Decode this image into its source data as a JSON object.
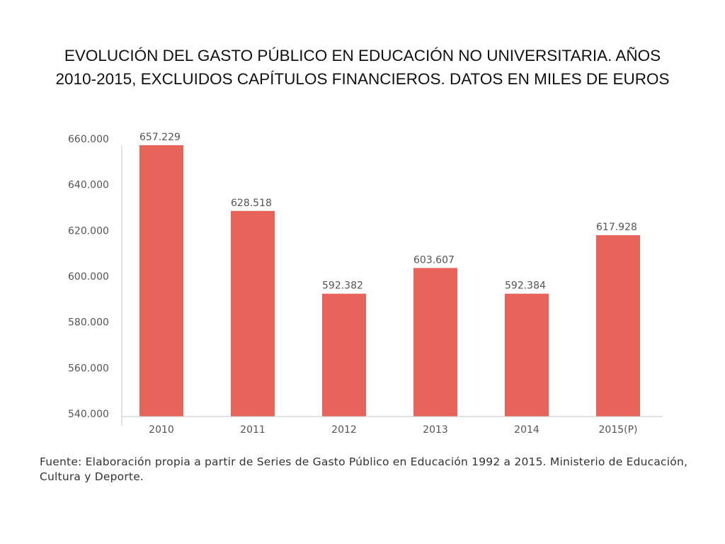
{
  "title": {
    "line1": "EVOLUCIÓN DEL GASTO PÚBLICO EN EDUCACIÓN NO UNIVERSITARIA. AÑOS",
    "line2": "2010-2015, EXCLUIDOS CAPÍTULOS FINANCIEROS. DATOS EN MILES DE EUROS"
  },
  "source": "Fuente: Elaboración propia a partir de Series de Gasto Público en Educación 1992 a 2015. Ministerio de Educación, Cultura y Deporte.",
  "colors": {
    "bar": "#e8635a",
    "axis_text": "#555555",
    "axis_line": "#c8c8c8"
  },
  "chart_data": {
    "type": "bar",
    "title": "EVOLUCIÓN DEL GASTO PÚBLICO EN EDUCACIÓN NO UNIVERSITARIA. AÑOS 2010-2015, EXCLUIDOS CAPÍTULOS FINANCIEROS. DATOS EN MILES DE EUROS",
    "xlabel": "",
    "ylabel": "",
    "categories": [
      "2010",
      "2011",
      "2012",
      "2013",
      "2014",
      "2015(P)"
    ],
    "values": [
      657229,
      628518,
      592382,
      603607,
      592384,
      617928
    ],
    "data_labels": [
      "657.229",
      "628.518",
      "592.382",
      "603.607",
      "592.384",
      "617.928"
    ],
    "ylim": [
      540000,
      660000
    ],
    "yticks": [
      540000,
      560000,
      580000,
      600000,
      620000,
      640000,
      660000
    ],
    "ytick_labels": [
      "540.000",
      "560.000",
      "580.000",
      "600.000",
      "620.000",
      "640.000",
      "660.000"
    ],
    "grid": false,
    "legend": "none"
  }
}
